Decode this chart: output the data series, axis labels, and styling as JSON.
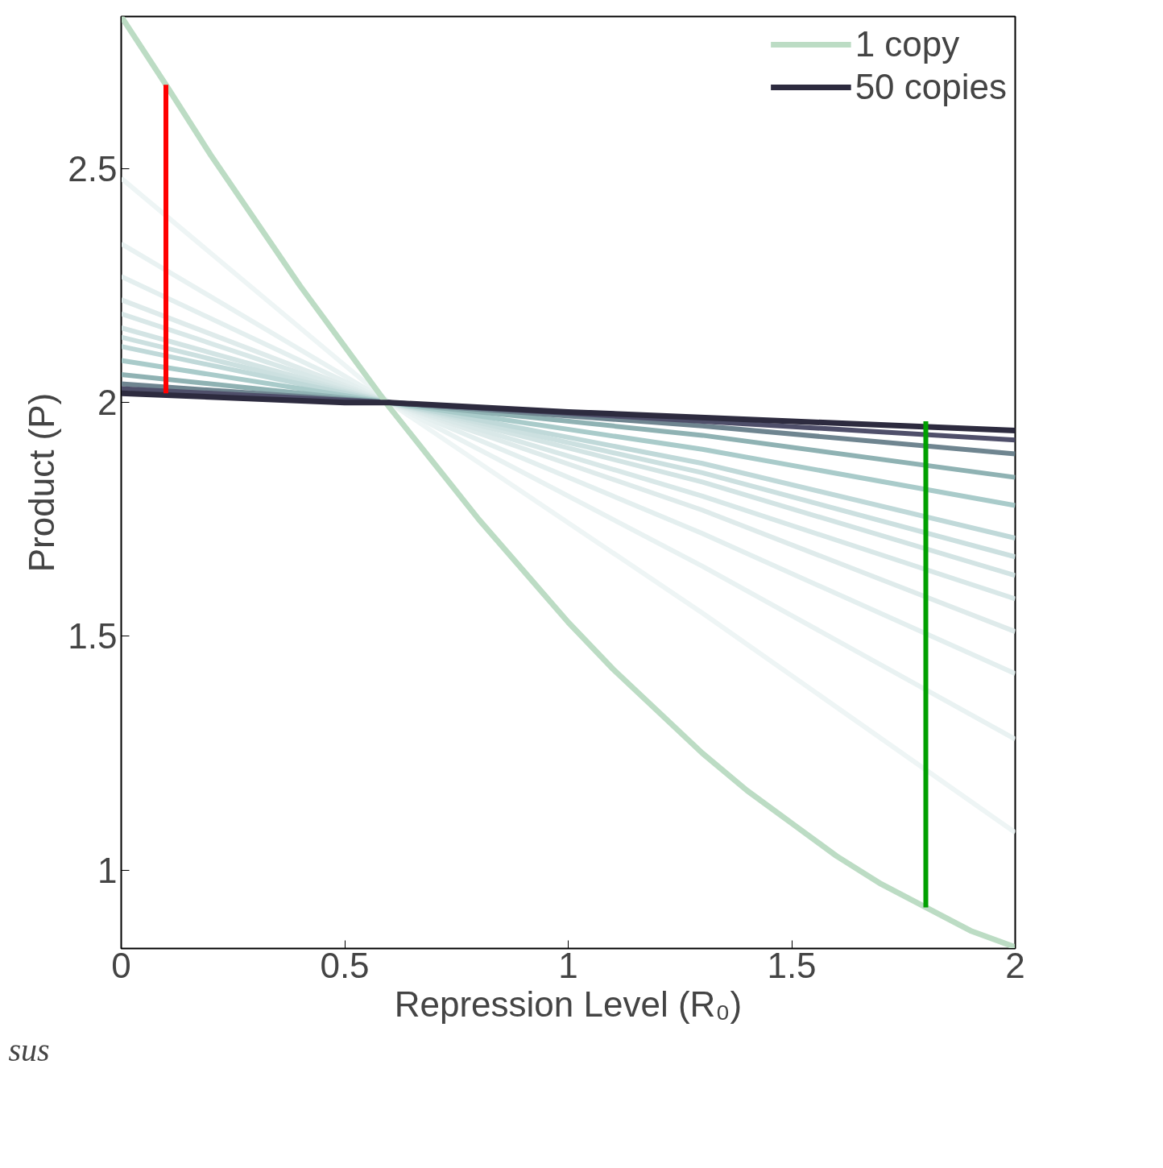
{
  "chart_data": {
    "type": "line",
    "xlabel": "Repression Level (R₀)",
    "ylabel": "Product (P)",
    "xlim": [
      0,
      2
    ],
    "ylim": [
      0.832,
      2.826
    ],
    "xticks": [
      0,
      0.5,
      1,
      1.5,
      2
    ],
    "yticks": [
      1,
      1.5,
      2,
      2.5
    ],
    "grid": false,
    "legend": "top right",
    "line_style": "solid",
    "annotations": [
      "sus"
    ],
    "series": [
      {
        "color": "#eef5f5",
        "x": [
          0,
          0.6,
          1.3,
          2
        ],
        "values": [
          2.48,
          2.0,
          1.55,
          1.08
        ]
      },
      {
        "color": "#e9f2f2",
        "x": [
          0,
          0.6,
          1.3,
          2
        ],
        "values": [
          2.34,
          2.0,
          1.65,
          1.28
        ]
      },
      {
        "color": "#e4efef",
        "x": [
          0,
          0.6,
          1.3,
          2
        ],
        "values": [
          2.27,
          2.0,
          1.72,
          1.42
        ]
      },
      {
        "color": "#dfebeb",
        "x": [
          0,
          0.6,
          1.3,
          2
        ],
        "values": [
          2.22,
          2.0,
          1.77,
          1.51
        ]
      },
      {
        "color": "#d9e8e8",
        "x": [
          0,
          0.6,
          1.3,
          2
        ],
        "values": [
          2.19,
          2.0,
          1.8,
          1.58
        ]
      },
      {
        "color": "#d3e4e4",
        "x": [
          0,
          0.6,
          1.3,
          2
        ],
        "values": [
          2.16,
          2.0,
          1.83,
          1.63
        ]
      },
      {
        "color": "#cce0e0",
        "x": [
          0,
          0.6,
          1.3,
          2
        ],
        "values": [
          2.14,
          2.0,
          1.85,
          1.67
        ]
      },
      {
        "color": "#c0d9d9",
        "x": [
          0,
          0.6,
          1.3,
          2
        ],
        "values": [
          2.12,
          2.0,
          1.87,
          1.71
        ]
      },
      {
        "color": "#a9cbca",
        "x": [
          0,
          0.6,
          1.3,
          2
        ],
        "values": [
          2.09,
          2.0,
          1.9,
          1.78
        ]
      },
      {
        "color": "#8fb2b3",
        "x": [
          0,
          0.6,
          1.3,
          2
        ],
        "values": [
          2.06,
          2.0,
          1.93,
          1.84
        ]
      },
      {
        "color": "#6f8590",
        "x": [
          0,
          0.6,
          1.3,
          2
        ],
        "values": [
          2.04,
          2.0,
          1.95,
          1.89
        ]
      },
      {
        "color": "#4f4f6a",
        "x": [
          0,
          0.6,
          1.3,
          2
        ],
        "values": [
          2.03,
          2.0,
          1.96,
          1.92
        ]
      },
      {
        "name": "1 copy",
        "color": "#bcdcc4",
        "x": [
          0,
          0.1,
          0.2,
          0.3,
          0.4,
          0.5,
          0.6,
          0.7,
          0.8,
          0.9,
          1.0,
          1.1,
          1.2,
          1.3,
          1.4,
          1.5,
          1.6,
          1.7,
          1.8,
          1.9,
          2.0
        ],
        "values": [
          2.826,
          2.68,
          2.53,
          2.39,
          2.25,
          2.12,
          1.99,
          1.87,
          1.75,
          1.64,
          1.53,
          1.43,
          1.34,
          1.25,
          1.17,
          1.1,
          1.03,
          0.97,
          0.92,
          0.87,
          0.835
        ]
      },
      {
        "name": "50 copies",
        "color": "#2d2b3f",
        "x": [
          0,
          0.5,
          0.6,
          1.0,
          1.5,
          2.0
        ],
        "values": [
          2.02,
          2.0,
          2.0,
          1.98,
          1.96,
          1.94
        ]
      },
      {
        "color": "#ff0000",
        "x": [
          0.1,
          0.1
        ],
        "values": [
          2.68,
          2.02
        ]
      },
      {
        "color": "#00a000",
        "x": [
          1.8,
          1.8
        ],
        "values": [
          0.92,
          1.96
        ]
      }
    ]
  }
}
